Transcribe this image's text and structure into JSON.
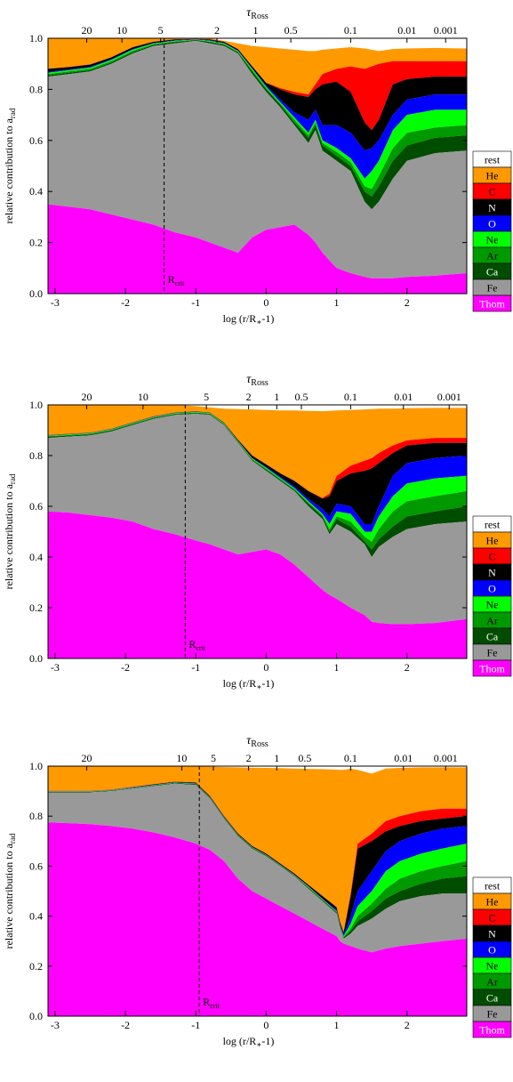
{
  "figure": {
    "top_axis_label": "τ",
    "top_axis_label_sub": "Ross",
    "ylabel": "relative contribution to a",
    "ylabel_sub": "rad",
    "xlabel": "log (r/R",
    "xlabel_star": "∗",
    "xlabel_tail": "-1)",
    "rcrit_label": "R",
    "rcrit_sub": "crit"
  },
  "legend": {
    "entries": [
      "rest",
      "He",
      "C",
      "N",
      "O",
      "Ne",
      "Ar",
      "Ca",
      "Fe",
      "Thom"
    ],
    "colors": [
      "#ffffff",
      "#ff9900",
      "#ff0000",
      "#000000",
      "#0000ff",
      "#00ff00",
      "#009900",
      "#004d00",
      "#999999",
      "#ff00ff"
    ],
    "text_colors": [
      "#000000",
      "#000000",
      "#000000",
      "#ffffff",
      "#ffffff",
      "#000000",
      "#000000",
      "#ffffff",
      "#000000",
      "#ffffff"
    ]
  },
  "chart_data": [
    {
      "type": "area",
      "stacked": true,
      "x": [
        -3.1,
        -2.8,
        -2.5,
        -2.2,
        -1.9,
        -1.6,
        -1.3,
        -1.0,
        -0.8,
        -0.6,
        -0.4,
        -0.2,
        0.0,
        0.2,
        0.4,
        0.6,
        0.7,
        0.8,
        1.0,
        1.2,
        1.4,
        1.5,
        1.6,
        1.8,
        2.0,
        2.4,
        2.85
      ],
      "xlim": [
        -3.1,
        2.85
      ],
      "ylim": [
        0,
        1
      ],
      "xticks": [
        -3,
        -2,
        -1,
        0,
        1,
        2
      ],
      "yticks": [
        0.0,
        0.2,
        0.4,
        0.6,
        0.8,
        1.0
      ],
      "top_axis": {
        "ticks": [
          "20",
          "10",
          "5",
          "2",
          "1",
          "0.5",
          "0.1",
          "0.01",
          "0.001"
        ],
        "x_positions": [
          -2.55,
          -2.05,
          -1.5,
          -0.7,
          -0.15,
          0.35,
          1.2,
          2.0,
          2.55
        ]
      },
      "r_crit": -1.45,
      "series_order": [
        "Thom",
        "Fe",
        "Ca",
        "Ar",
        "Ne",
        "O",
        "N",
        "C",
        "He",
        "rest"
      ],
      "cumulative": {
        "Thom": [
          0.35,
          0.34,
          0.33,
          0.31,
          0.29,
          0.27,
          0.24,
          0.22,
          0.2,
          0.18,
          0.16,
          0.22,
          0.25,
          0.26,
          0.27,
          0.23,
          0.2,
          0.16,
          0.1,
          0.08,
          0.065,
          0.06,
          0.06,
          0.06,
          0.065,
          0.07,
          0.08
        ],
        "Fe": [
          0.85,
          0.86,
          0.87,
          0.9,
          0.94,
          0.97,
          0.98,
          0.99,
          0.98,
          0.97,
          0.94,
          0.86,
          0.79,
          0.73,
          0.66,
          0.59,
          0.64,
          0.56,
          0.52,
          0.48,
          0.36,
          0.33,
          0.36,
          0.45,
          0.52,
          0.55,
          0.56
        ],
        "Ca": [
          0.855,
          0.865,
          0.875,
          0.905,
          0.945,
          0.975,
          0.985,
          0.993,
          0.985,
          0.975,
          0.945,
          0.87,
          0.8,
          0.74,
          0.67,
          0.61,
          0.66,
          0.58,
          0.54,
          0.5,
          0.4,
          0.38,
          0.42,
          0.52,
          0.58,
          0.61,
          0.62
        ],
        "Ar": [
          0.86,
          0.87,
          0.88,
          0.91,
          0.95,
          0.977,
          0.987,
          0.994,
          0.987,
          0.977,
          0.947,
          0.875,
          0.805,
          0.745,
          0.68,
          0.62,
          0.67,
          0.59,
          0.555,
          0.515,
          0.42,
          0.41,
          0.46,
          0.57,
          0.63,
          0.65,
          0.66
        ],
        "Ne": [
          0.865,
          0.875,
          0.885,
          0.915,
          0.955,
          0.98,
          0.99,
          0.995,
          0.99,
          0.98,
          0.95,
          0.88,
          0.81,
          0.75,
          0.69,
          0.63,
          0.68,
          0.6,
          0.57,
          0.53,
          0.45,
          0.48,
          0.52,
          0.64,
          0.7,
          0.72,
          0.72
        ],
        "O": [
          0.868,
          0.878,
          0.888,
          0.918,
          0.958,
          0.982,
          0.992,
          0.996,
          0.992,
          0.982,
          0.952,
          0.883,
          0.815,
          0.76,
          0.71,
          0.68,
          0.72,
          0.66,
          0.66,
          0.63,
          0.56,
          0.57,
          0.6,
          0.7,
          0.76,
          0.78,
          0.78
        ],
        "N": [
          0.88,
          0.887,
          0.897,
          0.925,
          0.964,
          0.986,
          0.995,
          0.997,
          0.995,
          0.986,
          0.957,
          0.89,
          0.825,
          0.8,
          0.78,
          0.77,
          0.8,
          0.82,
          0.83,
          0.79,
          0.67,
          0.64,
          0.68,
          0.82,
          0.84,
          0.85,
          0.85
        ],
        "C": [
          0.881,
          0.888,
          0.898,
          0.926,
          0.965,
          0.987,
          0.996,
          0.998,
          0.996,
          0.987,
          0.958,
          0.891,
          0.826,
          0.805,
          0.79,
          0.78,
          0.82,
          0.86,
          0.88,
          0.89,
          0.88,
          0.89,
          0.9,
          0.91,
          0.91,
          0.91,
          0.91
        ],
        "He": [
          1.0,
          1.0,
          1.0,
          1.0,
          1.0,
          1.0,
          1.0,
          1.0,
          1.0,
          0.99,
          0.98,
          0.97,
          0.965,
          0.96,
          0.955,
          0.95,
          0.95,
          0.955,
          0.96,
          0.965,
          0.96,
          0.955,
          0.95,
          0.958,
          0.96,
          0.962,
          0.96
        ],
        "rest": [
          1.0,
          1.0,
          1.0,
          1.0,
          1.0,
          1.0,
          1.0,
          1.0,
          1.0,
          1.0,
          1.0,
          1.0,
          1.0,
          1.0,
          1.0,
          1.0,
          1.0,
          1.0,
          1.0,
          1.0,
          1.0,
          1.0,
          1.0,
          1.0,
          1.0,
          1.0,
          1.0
        ]
      }
    },
    {
      "type": "area",
      "stacked": true,
      "x": [
        -3.1,
        -2.8,
        -2.5,
        -2.2,
        -1.9,
        -1.6,
        -1.3,
        -1.0,
        -0.8,
        -0.6,
        -0.4,
        -0.2,
        0.0,
        0.2,
        0.4,
        0.6,
        0.8,
        0.9,
        1.0,
        1.2,
        1.4,
        1.5,
        1.6,
        1.8,
        2.0,
        2.4,
        2.85
      ],
      "xlim": [
        -3.1,
        2.85
      ],
      "ylim": [
        0,
        1
      ],
      "xticks": [
        -3,
        -2,
        -1,
        0,
        1,
        2
      ],
      "yticks": [
        0.0,
        0.2,
        0.4,
        0.6,
        0.8,
        1.0
      ],
      "top_axis": {
        "ticks": [
          "20",
          "10",
          "5",
          "2",
          "1",
          "0.5",
          "0.1",
          "0.01",
          "0.001"
        ],
        "x_positions": [
          -2.55,
          -1.75,
          -0.85,
          -0.25,
          0.15,
          0.5,
          1.2,
          1.95,
          2.6
        ]
      },
      "r_crit": -1.15,
      "series_order": [
        "Thom",
        "Fe",
        "Ca",
        "Ar",
        "Ne",
        "O",
        "N",
        "C",
        "He",
        "rest"
      ],
      "cumulative": {
        "Thom": [
          0.58,
          0.575,
          0.565,
          0.555,
          0.54,
          0.51,
          0.49,
          0.465,
          0.45,
          0.43,
          0.41,
          0.42,
          0.43,
          0.41,
          0.37,
          0.32,
          0.27,
          0.25,
          0.235,
          0.2,
          0.17,
          0.145,
          0.14,
          0.135,
          0.135,
          0.14,
          0.155
        ],
        "Fe": [
          0.87,
          0.875,
          0.88,
          0.895,
          0.92,
          0.945,
          0.96,
          0.965,
          0.96,
          0.92,
          0.85,
          0.78,
          0.74,
          0.7,
          0.66,
          0.6,
          0.55,
          0.49,
          0.53,
          0.5,
          0.45,
          0.4,
          0.44,
          0.48,
          0.51,
          0.53,
          0.54
        ],
        "Ca": [
          0.874,
          0.879,
          0.884,
          0.899,
          0.924,
          0.948,
          0.963,
          0.968,
          0.963,
          0.923,
          0.853,
          0.783,
          0.745,
          0.705,
          0.665,
          0.61,
          0.56,
          0.5,
          0.55,
          0.52,
          0.46,
          0.43,
          0.47,
          0.52,
          0.56,
          0.58,
          0.6
        ],
        "Ar": [
          0.876,
          0.881,
          0.886,
          0.901,
          0.926,
          0.95,
          0.965,
          0.97,
          0.965,
          0.925,
          0.855,
          0.786,
          0.748,
          0.708,
          0.668,
          0.615,
          0.565,
          0.51,
          0.56,
          0.54,
          0.48,
          0.46,
          0.51,
          0.58,
          0.62,
          0.64,
          0.66
        ],
        "Ne": [
          0.878,
          0.883,
          0.888,
          0.903,
          0.928,
          0.952,
          0.967,
          0.972,
          0.967,
          0.927,
          0.857,
          0.789,
          0.752,
          0.712,
          0.672,
          0.62,
          0.57,
          0.53,
          0.58,
          0.57,
          0.5,
          0.5,
          0.56,
          0.64,
          0.69,
          0.71,
          0.72
        ],
        "O": [
          0.879,
          0.884,
          0.889,
          0.904,
          0.929,
          0.953,
          0.968,
          0.973,
          0.968,
          0.928,
          0.858,
          0.79,
          0.755,
          0.716,
          0.678,
          0.63,
          0.59,
          0.56,
          0.61,
          0.6,
          0.53,
          0.53,
          0.6,
          0.72,
          0.77,
          0.79,
          0.8
        ],
        "N": [
          0.88,
          0.885,
          0.89,
          0.905,
          0.93,
          0.954,
          0.969,
          0.974,
          0.969,
          0.93,
          0.862,
          0.8,
          0.765,
          0.73,
          0.7,
          0.66,
          0.63,
          0.64,
          0.7,
          0.73,
          0.74,
          0.75,
          0.77,
          0.81,
          0.84,
          0.85,
          0.85
        ],
        "C": [
          0.881,
          0.886,
          0.891,
          0.906,
          0.931,
          0.955,
          0.97,
          0.975,
          0.97,
          0.931,
          0.863,
          0.801,
          0.766,
          0.731,
          0.701,
          0.661,
          0.633,
          0.65,
          0.72,
          0.76,
          0.78,
          0.79,
          0.81,
          0.84,
          0.86,
          0.87,
          0.87
        ],
        "He": [
          1.0,
          1.0,
          1.0,
          1.0,
          1.0,
          1.0,
          1.0,
          0.995,
          0.99,
          0.985,
          0.983,
          0.982,
          0.98,
          0.978,
          0.978,
          0.976,
          0.975,
          0.976,
          0.978,
          0.98,
          0.982,
          0.983,
          0.985,
          0.985,
          0.987,
          0.988,
          0.988
        ],
        "rest": [
          1.0,
          1.0,
          1.0,
          1.0,
          1.0,
          1.0,
          1.0,
          1.0,
          1.0,
          1.0,
          1.0,
          1.0,
          1.0,
          1.0,
          1.0,
          1.0,
          1.0,
          1.0,
          1.0,
          1.0,
          1.0,
          1.0,
          1.0,
          1.0,
          1.0,
          1.0,
          1.0
        ]
      }
    },
    {
      "type": "area",
      "stacked": true,
      "x": [
        -3.1,
        -2.8,
        -2.5,
        -2.2,
        -1.9,
        -1.6,
        -1.3,
        -1.0,
        -0.8,
        -0.6,
        -0.4,
        -0.2,
        0.0,
        0.2,
        0.4,
        0.6,
        0.8,
        1.0,
        1.05,
        1.1,
        1.2,
        1.3,
        1.5,
        1.7,
        1.9,
        2.2,
        2.5,
        2.85
      ],
      "xlim": [
        -3.1,
        2.85
      ],
      "ylim": [
        0,
        1
      ],
      "xticks": [
        -3,
        -2,
        -1,
        0,
        1,
        2
      ],
      "yticks": [
        0.0,
        0.2,
        0.4,
        0.6,
        0.8,
        1.0
      ],
      "top_axis": {
        "ticks": [
          "20",
          "10",
          "5",
          "2",
          "1",
          "0.5",
          "0.1",
          "0.01",
          "0.001"
        ],
        "x_positions": [
          -2.55,
          -1.2,
          -0.75,
          -0.25,
          0.15,
          0.55,
          1.2,
          1.95,
          2.55
        ]
      },
      "r_crit": -0.95,
      "series_order": [
        "Thom",
        "Fe",
        "Ca",
        "Ar",
        "Ne",
        "O",
        "N",
        "C",
        "He",
        "rest"
      ],
      "cumulative": {
        "Thom": [
          0.775,
          0.772,
          0.768,
          0.76,
          0.75,
          0.735,
          0.715,
          0.69,
          0.665,
          0.62,
          0.55,
          0.5,
          0.47,
          0.44,
          0.41,
          0.38,
          0.35,
          0.32,
          0.3,
          0.29,
          0.28,
          0.27,
          0.255,
          0.27,
          0.28,
          0.29,
          0.3,
          0.31
        ],
        "Fe": [
          0.895,
          0.895,
          0.895,
          0.9,
          0.91,
          0.92,
          0.93,
          0.925,
          0.87,
          0.79,
          0.72,
          0.67,
          0.64,
          0.6,
          0.56,
          0.51,
          0.46,
          0.41,
          0.35,
          0.31,
          0.33,
          0.36,
          0.39,
          0.43,
          0.46,
          0.48,
          0.49,
          0.49
        ],
        "Ca": [
          0.897,
          0.897,
          0.897,
          0.902,
          0.912,
          0.922,
          0.932,
          0.928,
          0.873,
          0.793,
          0.723,
          0.673,
          0.643,
          0.603,
          0.563,
          0.514,
          0.464,
          0.415,
          0.355,
          0.315,
          0.34,
          0.38,
          0.42,
          0.47,
          0.5,
          0.53,
          0.55,
          0.56
        ],
        "Ar": [
          0.898,
          0.898,
          0.898,
          0.903,
          0.913,
          0.923,
          0.933,
          0.929,
          0.874,
          0.794,
          0.724,
          0.674,
          0.644,
          0.604,
          0.564,
          0.516,
          0.466,
          0.417,
          0.357,
          0.317,
          0.35,
          0.4,
          0.45,
          0.51,
          0.55,
          0.58,
          0.6,
          0.62
        ],
        "Ne": [
          0.899,
          0.899,
          0.899,
          0.904,
          0.914,
          0.924,
          0.934,
          0.93,
          0.875,
          0.795,
          0.725,
          0.675,
          0.645,
          0.605,
          0.565,
          0.518,
          0.468,
          0.42,
          0.36,
          0.32,
          0.37,
          0.44,
          0.5,
          0.58,
          0.62,
          0.65,
          0.67,
          0.69
        ],
        "O": [
          0.9,
          0.9,
          0.9,
          0.905,
          0.915,
          0.925,
          0.935,
          0.931,
          0.876,
          0.796,
          0.726,
          0.676,
          0.646,
          0.606,
          0.566,
          0.52,
          0.47,
          0.425,
          0.365,
          0.325,
          0.4,
          0.5,
          0.58,
          0.66,
          0.7,
          0.73,
          0.75,
          0.76
        ],
        "N": [
          0.9,
          0.9,
          0.9,
          0.905,
          0.916,
          0.927,
          0.937,
          0.934,
          0.88,
          0.8,
          0.73,
          0.68,
          0.65,
          0.61,
          0.57,
          0.525,
          0.48,
          0.435,
          0.375,
          0.335,
          0.48,
          0.67,
          0.7,
          0.74,
          0.76,
          0.78,
          0.79,
          0.8
        ],
        "C": [
          0.901,
          0.901,
          0.901,
          0.906,
          0.917,
          0.928,
          0.938,
          0.935,
          0.881,
          0.801,
          0.731,
          0.681,
          0.651,
          0.611,
          0.571,
          0.526,
          0.481,
          0.437,
          0.377,
          0.337,
          0.49,
          0.69,
          0.73,
          0.78,
          0.8,
          0.82,
          0.83,
          0.83
        ],
        "He": [
          1.0,
          1.0,
          1.0,
          1.0,
          1.0,
          1.0,
          1.0,
          1.0,
          0.998,
          0.996,
          0.995,
          0.994,
          0.993,
          0.992,
          0.99,
          0.989,
          0.988,
          0.986,
          0.985,
          0.985,
          0.99,
          0.985,
          0.97,
          0.99,
          0.993,
          0.995,
          0.995,
          0.995
        ],
        "rest": [
          1.0,
          1.0,
          1.0,
          1.0,
          1.0,
          1.0,
          1.0,
          1.0,
          1.0,
          1.0,
          1.0,
          1.0,
          1.0,
          1.0,
          1.0,
          1.0,
          1.0,
          1.0,
          1.0,
          1.0,
          1.0,
          1.0,
          1.0,
          1.0,
          1.0,
          1.0,
          1.0,
          1.0
        ]
      }
    }
  ]
}
